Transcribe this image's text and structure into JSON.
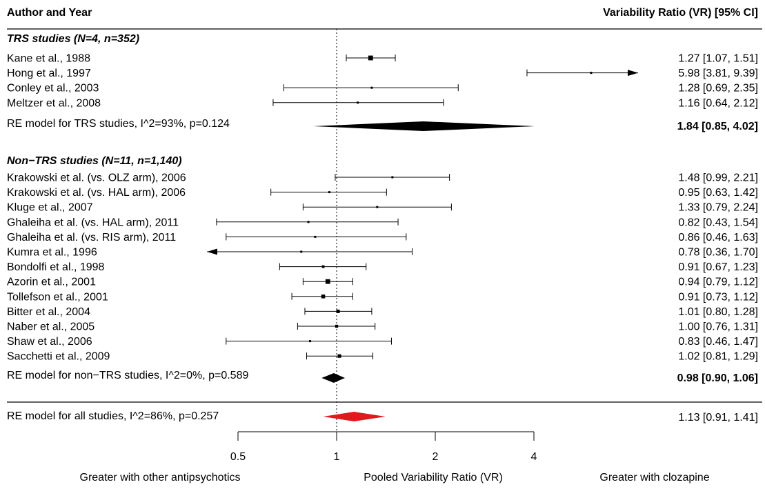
{
  "chart_data": {
    "type": "forest",
    "x_scale": "log",
    "xlim": [
      0.5,
      4
    ],
    "reference_line": 1,
    "header": {
      "left": "Author and Year",
      "right": "Variability Ratio (VR) [95% CI]"
    },
    "groups": [
      {
        "title": "TRS studies (N=4, n=352)",
        "studies": [
          {
            "label": "Kane et al., 1988",
            "vr": 1.27,
            "lo": 1.07,
            "hi": 1.51,
            "text": "1.27 [1.07, 1.51]"
          },
          {
            "label": "Hong et al., 1997",
            "vr": 5.98,
            "lo": 3.81,
            "hi": 9.39,
            "text": "5.98 [3.81, 9.39]"
          },
          {
            "label": "Conley et al., 2003",
            "vr": 1.28,
            "lo": 0.69,
            "hi": 2.35,
            "text": "1.28 [0.69, 2.35]"
          },
          {
            "label": "Meltzer et al., 2008",
            "vr": 1.16,
            "lo": 0.64,
            "hi": 2.12,
            "text": "1.16 [0.64, 2.12]"
          }
        ],
        "model": {
          "label": "RE model for TRS studies, I^2=93%, p=0.124",
          "vr": 1.84,
          "lo": 0.85,
          "hi": 4.02,
          "text": "1.84 [0.85, 4.02]"
        }
      },
      {
        "title": "Non−TRS studies (N=11, n=1,140)",
        "studies": [
          {
            "label": "Krakowski et al. (vs. OLZ arm), 2006",
            "vr": 1.48,
            "lo": 0.99,
            "hi": 2.21,
            "text": "1.48 [0.99, 2.21]"
          },
          {
            "label": "Krakowski et al. (vs. HAL arm), 2006",
            "vr": 0.95,
            "lo": 0.63,
            "hi": 1.42,
            "text": "0.95 [0.63, 1.42]"
          },
          {
            "label": "Kluge et al., 2007",
            "vr": 1.33,
            "lo": 0.79,
            "hi": 2.24,
            "text": "1.33 [0.79, 2.24]"
          },
          {
            "label": "Ghaleiha et al. (vs. HAL arm), 2011",
            "vr": 0.82,
            "lo": 0.43,
            "hi": 1.54,
            "text": "0.82 [0.43, 1.54]"
          },
          {
            "label": "Ghaleiha et al. (vs. RIS arm), 2011",
            "vr": 0.86,
            "lo": 0.46,
            "hi": 1.63,
            "text": "0.86 [0.46, 1.63]"
          },
          {
            "label": "Kumra et al., 1996",
            "vr": 0.78,
            "lo": 0.36,
            "hi": 1.7,
            "text": "0.78 [0.36, 1.70]"
          },
          {
            "label": "Bondolfi et al., 1998",
            "vr": 0.91,
            "lo": 0.67,
            "hi": 1.23,
            "text": "0.91 [0.67, 1.23]"
          },
          {
            "label": "Azorin et al., 2001",
            "vr": 0.94,
            "lo": 0.79,
            "hi": 1.12,
            "text": "0.94 [0.79, 1.12]"
          },
          {
            "label": "Tollefson et al., 2001",
            "vr": 0.91,
            "lo": 0.73,
            "hi": 1.12,
            "text": "0.91 [0.73, 1.12]"
          },
          {
            "label": "Bitter et al., 2004",
            "vr": 1.01,
            "lo": 0.8,
            "hi": 1.28,
            "text": "1.01 [0.80, 1.28]"
          },
          {
            "label": "Naber et al., 2005",
            "vr": 1.0,
            "lo": 0.76,
            "hi": 1.31,
            "text": "1.00 [0.76, 1.31]"
          },
          {
            "label": "Shaw et al., 2006",
            "vr": 0.83,
            "lo": 0.46,
            "hi": 1.47,
            "text": "0.83 [0.46, 1.47]"
          },
          {
            "label": "Sacchetti et al., 2009",
            "vr": 1.02,
            "lo": 0.81,
            "hi": 1.29,
            "text": "1.02 [0.81, 1.29]"
          }
        ],
        "model": {
          "label": "RE model for non−TRS studies, I^2=0%, p=0.589",
          "vr": 0.98,
          "lo": 0.9,
          "hi": 1.06,
          "text": "0.98 [0.90, 1.06]"
        }
      }
    ],
    "overall": {
      "label": "RE model for all studies, I^2=86%, p=0.257",
      "vr": 1.13,
      "lo": 0.91,
      "hi": 1.41,
      "text": "1.13 [0.91, 1.41]",
      "color": "#e0191d"
    },
    "x_ticks": [
      {
        "value": 0.5,
        "label": "0.5"
      },
      {
        "value": 1,
        "label": "1"
      },
      {
        "value": 2,
        "label": "2"
      },
      {
        "value": 4,
        "label": "4"
      }
    ],
    "xlabel": "Pooled Variability Ratio (VR)",
    "left_direction_label": "Greater with other antipsychotics",
    "right_direction_label": "Greater with clozapine",
    "colors": {
      "marker": "#000000",
      "diamond": "#000000",
      "overall_diamond": "#e0191d"
    }
  }
}
